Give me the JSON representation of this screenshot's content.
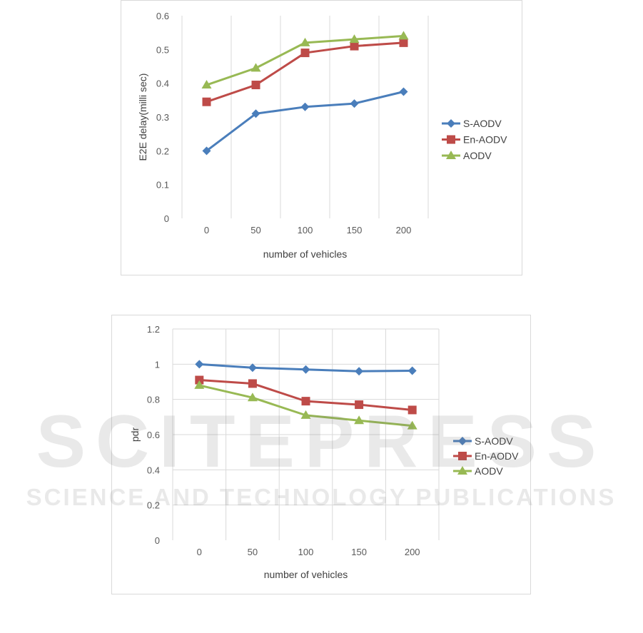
{
  "watermark": {
    "main": "SCITEPRESS",
    "sub": "SCIENCE AND TECHNOLOGY PUBLICATIONS"
  },
  "chart_data": [
    {
      "type": "line",
      "title": "",
      "xlabel": "number of vehicles",
      "ylabel": "E2E delay(milli sec)",
      "categories": [
        "0",
        "50",
        "100",
        "150",
        "200"
      ],
      "yticks": [
        "0",
        "0.1",
        "0.2",
        "0.3",
        "0.4",
        "0.5",
        "0.6"
      ],
      "ylim": [
        0,
        0.6
      ],
      "grid": "vertical",
      "legend_position": "right",
      "series": [
        {
          "name": "S-AODV",
          "values": [
            0.2,
            0.31,
            0.33,
            0.34,
            0.375
          ],
          "color": "#4a7ebb",
          "marker": "diamond"
        },
        {
          "name": "En-AODV",
          "values": [
            0.345,
            0.395,
            0.49,
            0.51,
            0.52
          ],
          "color": "#be4b48",
          "marker": "square"
        },
        {
          "name": "AODV",
          "values": [
            0.395,
            0.445,
            0.52,
            0.53,
            0.54
          ],
          "color": "#98b954",
          "marker": "triangle"
        }
      ]
    },
    {
      "type": "line",
      "title": "",
      "xlabel": "number of vehicles",
      "ylabel": "pdr",
      "categories": [
        "0",
        "50",
        "100",
        "150",
        "200"
      ],
      "yticks": [
        "0",
        "0.2",
        "0.4",
        "0.6",
        "0.8",
        "1",
        "1.2"
      ],
      "ylim": [
        0,
        1.2
      ],
      "grid": "both",
      "legend_position": "right",
      "series": [
        {
          "name": "S-AODV",
          "values": [
            1.0,
            0.98,
            0.97,
            0.96,
            0.963
          ],
          "color": "#4a7ebb",
          "marker": "diamond"
        },
        {
          "name": "En-AODV",
          "values": [
            0.91,
            0.89,
            0.79,
            0.77,
            0.74
          ],
          "color": "#be4b48",
          "marker": "square"
        },
        {
          "name": "AODV",
          "values": [
            0.88,
            0.81,
            0.71,
            0.68,
            0.65
          ],
          "color": "#98b954",
          "marker": "triangle"
        }
      ]
    }
  ]
}
